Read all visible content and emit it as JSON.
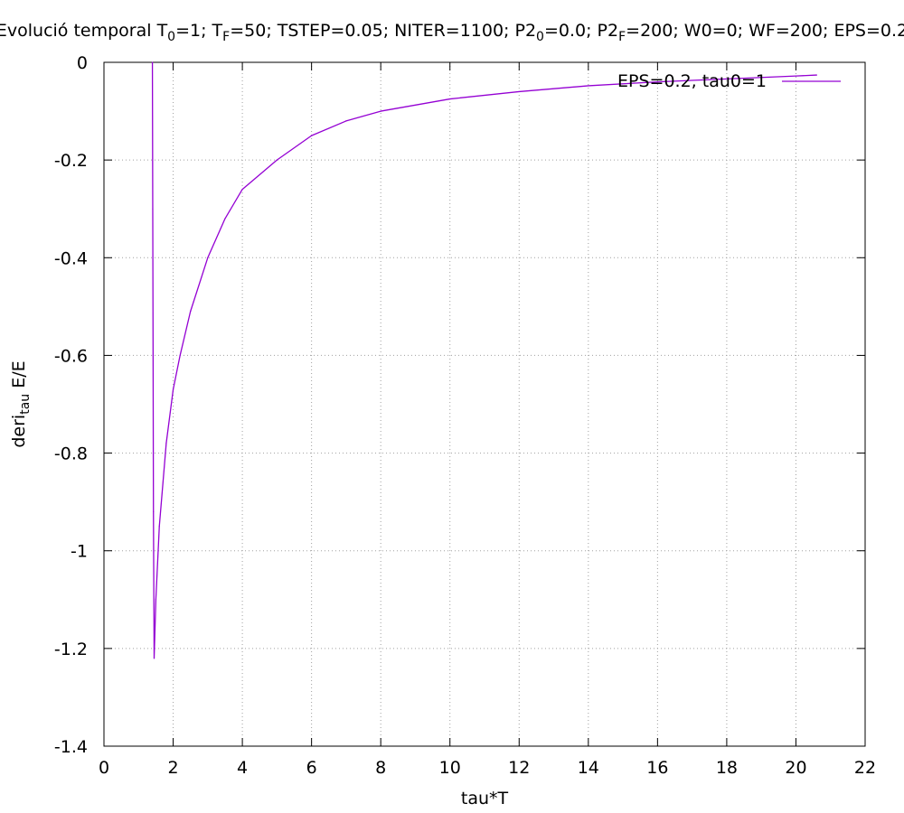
{
  "chart_data": {
    "type": "line",
    "title": {
      "parts": [
        {
          "text": "Evolució temporal T"
        },
        {
          "text": "0",
          "sub": true
        },
        {
          "text": "=1; T"
        },
        {
          "text": "F",
          "sub": true
        },
        {
          "text": "=50; TSTEP=0.05; NITER=1100; P2"
        },
        {
          "text": "0",
          "sub": true
        },
        {
          "text": "=0.0; P2"
        },
        {
          "text": "F",
          "sub": true
        },
        {
          "text": "=200; W0=0; WF=200; EPS=0.2"
        }
      ]
    },
    "xlabel": "tau*T",
    "ylabel": {
      "parts": [
        {
          "text": "deri"
        },
        {
          "text": "tau",
          "sub": true
        },
        {
          "text": " E/E"
        }
      ]
    },
    "xlim": [
      0,
      22
    ],
    "ylim": [
      -1.4,
      0
    ],
    "xticks": [
      0,
      2,
      4,
      6,
      8,
      10,
      12,
      14,
      16,
      18,
      20,
      22
    ],
    "yticks": [
      0,
      -0.2,
      -0.4,
      -0.6,
      -0.8,
      -1,
      -1.2,
      -1.4
    ],
    "xtick_labels": [
      "0",
      "2",
      "4",
      "6",
      "8",
      "10",
      "12",
      "14",
      "16",
      "18",
      "20",
      "22"
    ],
    "ytick_labels": [
      "0",
      "-0.2",
      "-0.4",
      "-0.6",
      "-0.8",
      "-1",
      "-1.2",
      "-1.4"
    ],
    "grid": true,
    "legend_position": "top-right",
    "series": [
      {
        "name": "EPS=0.2, tau0=1",
        "color": "#9400d3",
        "x": [
          1.4,
          1.41,
          1.42,
          1.43,
          1.45,
          1.5,
          1.6,
          1.8,
          2.0,
          2.2,
          2.5,
          3.0,
          3.5,
          4.0,
          5.0,
          6.0,
          7.0,
          8.0,
          10.0,
          12.0,
          14.0,
          16.0,
          18.0,
          20.0,
          20.6
        ],
        "y": [
          0.0,
          -0.3,
          -0.6,
          -0.92,
          -1.22,
          -1.1,
          -0.95,
          -0.78,
          -0.67,
          -0.6,
          -0.51,
          -0.4,
          -0.32,
          -0.26,
          -0.2,
          -0.15,
          -0.12,
          -0.1,
          -0.075,
          -0.06,
          -0.048,
          -0.04,
          -0.034,
          -0.028,
          -0.026
        ]
      }
    ]
  }
}
